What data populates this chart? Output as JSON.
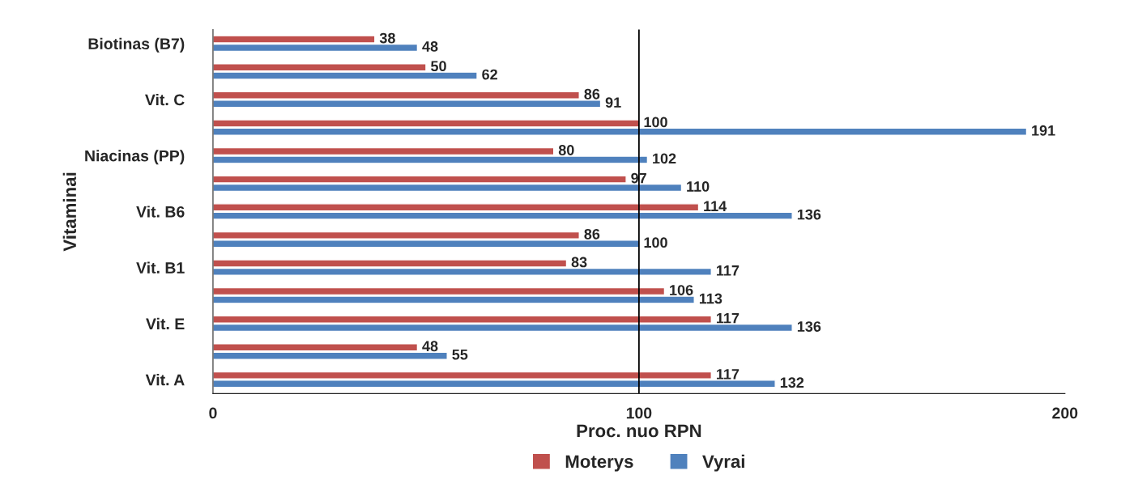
{
  "chart_data": {
    "type": "bar",
    "orientation": "horizontal",
    "xlabel": "Proc. nuo RPN",
    "ylabel": "Vitaminai",
    "categories": [
      "Biotinas (B7)",
      null,
      "Vit. C",
      null,
      "Niacinas (PP)",
      null,
      "Vit. B6",
      null,
      "Vit. B1",
      null,
      "Vit. E",
      null,
      "Vit. A"
    ],
    "series": [
      {
        "name": "Moterys",
        "color": "#c0504d",
        "values": [
          38,
          50,
          86,
          100,
          80,
          97,
          114,
          86,
          83,
          106,
          117,
          48,
          117
        ]
      },
      {
        "name": "Vyrai",
        "color": "#4f81bd",
        "values": [
          48,
          62,
          91,
          191,
          102,
          110,
          136,
          100,
          117,
          113,
          136,
          55,
          132
        ]
      }
    ],
    "xlim": [
      0,
      200
    ],
    "xticks": [
      0,
      100,
      200
    ],
    "data_labels": true,
    "legend": "bottom",
    "grid": false,
    "ref_lines": [
      {
        "axis": "x",
        "value": 100,
        "color": "#000000"
      }
    ]
  }
}
